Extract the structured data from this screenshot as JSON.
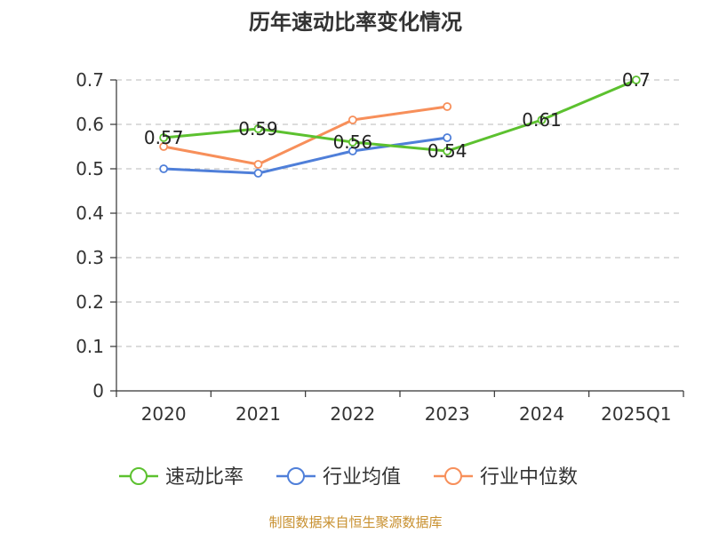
{
  "chart_data": {
    "type": "line",
    "title": "历年速动比率变化情况",
    "categories": [
      "2020",
      "2021",
      "2022",
      "2023",
      "2024",
      "2025Q1"
    ],
    "y_ticks": [
      "0",
      "0.1",
      "0.2",
      "0.3",
      "0.4",
      "0.5",
      "0.6",
      "0.7"
    ],
    "ylim": [
      0,
      0.7
    ],
    "grid": true,
    "legend_position": "bottom",
    "series": [
      {
        "name": "速动比率",
        "color": "#5cc12f",
        "values": [
          0.57,
          0.59,
          0.56,
          0.54,
          0.61,
          0.7
        ],
        "labels": [
          "0.57",
          "0.59",
          "0.56",
          "0.54",
          "0.61",
          "0.7"
        ]
      },
      {
        "name": "行业均值",
        "color": "#4f7fd9",
        "values": [
          0.5,
          0.49,
          0.54,
          0.57,
          null,
          null
        ]
      },
      {
        "name": "行业中位数",
        "color": "#f78f5a",
        "values": [
          0.55,
          0.51,
          0.61,
          0.64,
          null,
          null
        ]
      }
    ]
  },
  "source": "制图数据来自恒生聚源数据库"
}
